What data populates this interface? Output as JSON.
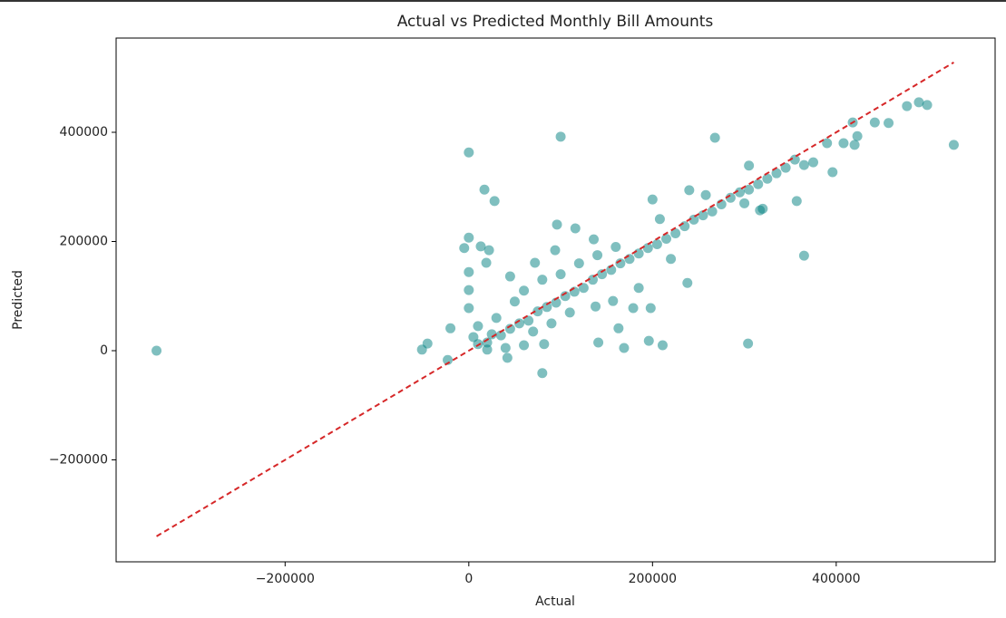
{
  "chart_data": {
    "type": "scatter",
    "title": "Actual vs Predicted Monthly Bill Amounts",
    "x_label": "Actual",
    "y_label": "Predicted",
    "x": [
      -340000,
      0,
      100000,
      17000,
      28000,
      268000,
      305000,
      528000,
      365000,
      304000,
      418000,
      442000,
      477000,
      490000,
      499000,
      457000,
      408000,
      423000,
      396000,
      390000,
      420000,
      82000,
      141000,
      169000,
      196000,
      211000,
      80000,
      42000,
      -51000,
      -45000,
      -23000,
      -20000,
      0,
      -5000,
      0,
      0,
      0,
      13000,
      22000,
      19000,
      96000,
      116000,
      136000,
      200000,
      240000,
      258000,
      208000,
      94000,
      72000,
      45000,
      238000,
      179000,
      198000,
      185000,
      157000,
      220000,
      357000,
      317000,
      163000,
      138000,
      10000,
      20000,
      25000,
      35000,
      45000,
      55000,
      65000,
      75000,
      85000,
      95000,
      105000,
      115000,
      125000,
      135000,
      145000,
      155000,
      165000,
      175000,
      185000,
      195000,
      205000,
      215000,
      225000,
      235000,
      245000,
      255000,
      265000,
      275000,
      285000,
      295000,
      305000,
      315000,
      325000,
      335000,
      345000,
      355000,
      365000,
      375000,
      320000,
      300000,
      20000,
      40000,
      60000,
      30000,
      50000,
      10000,
      5000,
      70000,
      90000,
      110000,
      60000,
      80000,
      100000,
      120000,
      140000,
      160000
    ],
    "values": [
      0,
      363000,
      392000,
      295000,
      274000,
      390000,
      339000,
      377000,
      174000,
      13000,
      418000,
      418000,
      448000,
      455000,
      450000,
      417000,
      380000,
      393000,
      327000,
      380000,
      377000,
      12000,
      15000,
      5000,
      18000,
      10000,
      -41000,
      -13000,
      2000,
      13000,
      -17000,
      41000,
      207000,
      188000,
      144000,
      111000,
      78000,
      191000,
      184000,
      161000,
      231000,
      224000,
      204000,
      277000,
      294000,
      285000,
      241000,
      184000,
      161000,
      136000,
      124000,
      78000,
      78000,
      115000,
      91000,
      168000,
      274000,
      257000,
      41000,
      81000,
      12000,
      15000,
      30000,
      28000,
      40000,
      50000,
      55000,
      72000,
      80000,
      88000,
      100000,
      108000,
      115000,
      130000,
      140000,
      148000,
      160000,
      168000,
      178000,
      188000,
      195000,
      205000,
      215000,
      228000,
      240000,
      248000,
      255000,
      268000,
      280000,
      290000,
      295000,
      305000,
      315000,
      325000,
      335000,
      350000,
      340000,
      345000,
      260000,
      270000,
      2000,
      5000,
      10000,
      60000,
      90000,
      45000,
      25000,
      35000,
      50000,
      70000,
      110000,
      130000,
      140000,
      160000,
      175000,
      190000
    ],
    "color": "#008080",
    "alpha": 0.5,
    "reference_line": {
      "x": [
        -340000,
        528000
      ],
      "y": [
        -340000,
        528000
      ],
      "color": "#d62728",
      "dashed": true
    },
    "xlim": [
      -384000,
      573000
    ],
    "ylim": [
      -386700,
      572600
    ],
    "xticks": [
      {
        "value": -200000,
        "label": "−200000"
      },
      0,
      200000,
      400000
    ],
    "yticks": [
      {
        "value": -200000,
        "label": "−200000"
      },
      0,
      200000,
      400000
    ],
    "grid": false
  }
}
